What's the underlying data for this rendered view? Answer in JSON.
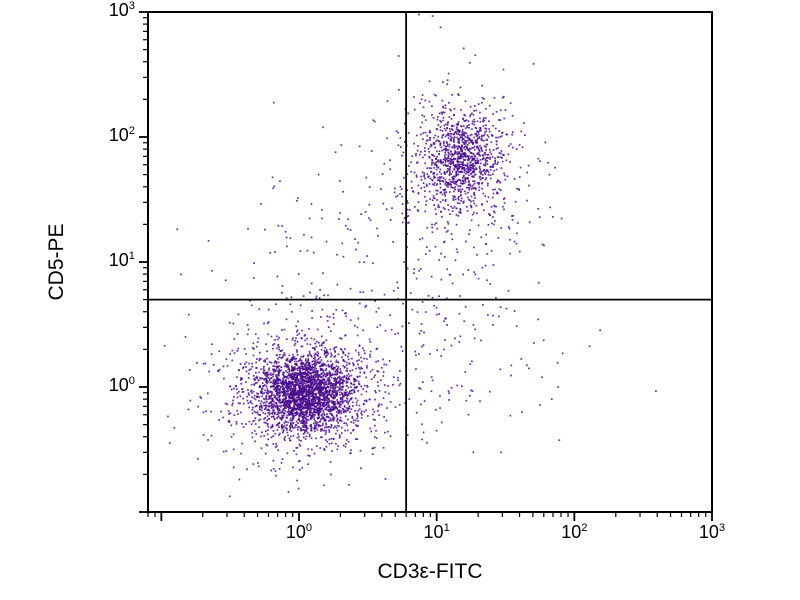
{
  "figure": {
    "background": "#ffffff",
    "frame_color": "#000000"
  },
  "chart_data": {
    "type": "scatter",
    "subtype": "flow-cytometry-dot-plot",
    "title": "",
    "xlabel": "CD3ε-FITC",
    "ylabel": "CD5-PE",
    "x_scale": "log",
    "y_scale": "log",
    "xlim": [
      0.08,
      1000
    ],
    "ylim": [
      0.1,
      1000
    ],
    "x_ticks": [
      {
        "coef": "10",
        "exp": "0",
        "value": 1
      },
      {
        "coef": "10",
        "exp": "1",
        "value": 10
      },
      {
        "coef": "10",
        "exp": "2",
        "value": 100
      },
      {
        "coef": "10",
        "exp": "3",
        "value": 1000
      }
    ],
    "y_ticks": [
      {
        "coef": "10",
        "exp": "0",
        "value": 1
      },
      {
        "coef": "10",
        "exp": "1",
        "value": 10
      },
      {
        "coef": "10",
        "exp": "2",
        "value": 100
      },
      {
        "coef": "10",
        "exp": "3",
        "value": 1000
      }
    ],
    "grid": false,
    "legend": false,
    "quadrant_gate": {
      "x": 6,
      "y": 5
    },
    "point_color": "#4a0a8c",
    "clusters": [
      {
        "name": "double-negative-core",
        "cx": 0.05,
        "cy": -0.05,
        "sx": 0.17,
        "sy": 0.15,
        "n": 2200
      },
      {
        "name": "double-negative-halo",
        "cx": 0.05,
        "cy": -0.05,
        "sx": 0.36,
        "sy": 0.3,
        "n": 900
      },
      {
        "name": "double-positive-core",
        "cx": 1.18,
        "cy": 1.82,
        "sx": 0.14,
        "sy": 0.18,
        "n": 800
      },
      {
        "name": "double-positive-halo",
        "cx": 1.16,
        "cy": 1.75,
        "sx": 0.26,
        "sy": 0.35,
        "n": 450
      },
      {
        "name": "bridge-scatter",
        "cx": 0.62,
        "cy": 0.9,
        "sx": 0.45,
        "sy": 0.55,
        "n": 170
      },
      {
        "name": "upper-left-sparse",
        "cx": -0.1,
        "cy": 1.0,
        "sx": 0.45,
        "sy": 0.45,
        "n": 45
      },
      {
        "name": "lower-right-tail",
        "cx": 1.25,
        "cy": 0.35,
        "sx": 0.35,
        "sy": 0.45,
        "n": 90
      },
      {
        "name": "top-outliers",
        "cx": 0.95,
        "cy": 2.9,
        "sx": 0.12,
        "sy": 0.05,
        "n": 3
      }
    ]
  }
}
